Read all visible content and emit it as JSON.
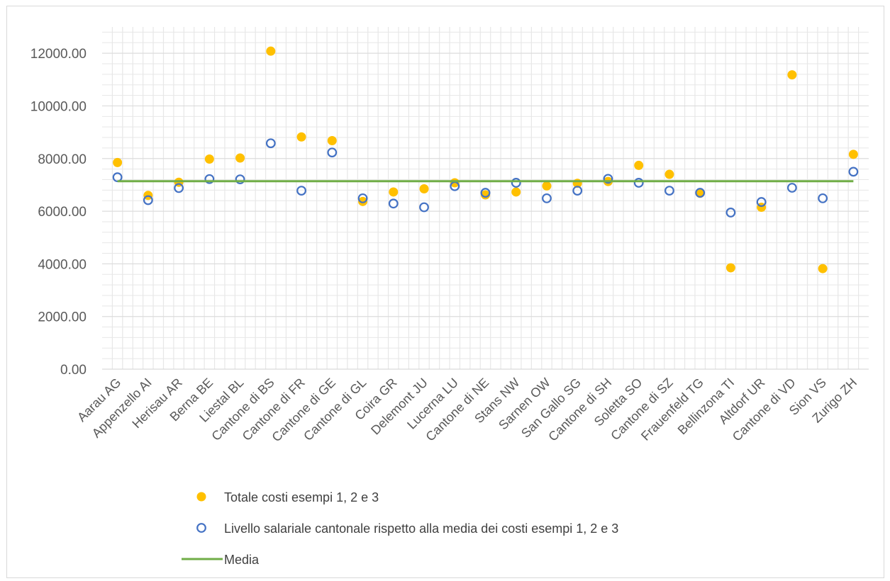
{
  "chart_data": {
    "type": "scatter",
    "categories": [
      "Aarau AG",
      "Appenzello AI",
      "Herisau AR",
      "Berna BE",
      "Liestal BL",
      "Cantone di BS",
      "Cantone di FR",
      "Cantone di GE",
      "Cantone di GL",
      "Coira GR",
      "Delemont JU",
      "Lucerna LU",
      "Cantone di NE",
      "Stans NW",
      "Sarnen OW",
      "San Gallo SG",
      "Cantone di SH",
      "Soletta SO",
      "Cantone di SZ",
      "Frauenfeld TG",
      "Bellinzona TI",
      "Altdorf UR",
      "Cantone di VD",
      "Sion VS",
      "Zurigo ZH"
    ],
    "series": [
      {
        "name": "Totale costi esempi 1, 2 e 3",
        "marker": "filled-circle",
        "color": "#FFC000",
        "values": [
          7850,
          6600,
          7100,
          7980,
          8020,
          12080,
          8820,
          8680,
          6370,
          6730,
          6850,
          7080,
          6620,
          6730,
          6960,
          7060,
          7130,
          7740,
          7400,
          6680,
          3850,
          6150,
          11180,
          3820,
          8160
        ]
      },
      {
        "name": "Livello salariale cantonale rispetto alla media dei costi esempi 1, 2 e 3",
        "marker": "hollow-circle",
        "color": "#4472C4",
        "values": [
          7290,
          6420,
          6880,
          7220,
          7210,
          8580,
          6780,
          8230,
          6490,
          6290,
          6150,
          6950,
          6700,
          7080,
          6490,
          6780,
          7230,
          7080,
          6780,
          6700,
          5950,
          6350,
          6890,
          6490,
          7500
        ]
      },
      {
        "name": "Media",
        "marker": "line",
        "color": "#70AD47",
        "values": [
          7140,
          7140,
          7140,
          7140,
          7140,
          7140,
          7140,
          7140,
          7140,
          7140,
          7140,
          7140,
          7140,
          7140,
          7140,
          7140,
          7140,
          7140,
          7140,
          7140,
          7140,
          7140,
          7140,
          7140,
          7140
        ]
      }
    ],
    "y_ticks": [
      "0.00",
      "2000.00",
      "4000.00",
      "6000.00",
      "8000.00",
      "10000.00",
      "12000.00"
    ],
    "ylim": [
      0,
      13000
    ],
    "y_step": 2000,
    "grid": "horizontal and vertical",
    "gridline_color": "#e7e7e7",
    "legend_position": "bottom",
    "title": "",
    "xlabel": "",
    "ylabel": ""
  }
}
